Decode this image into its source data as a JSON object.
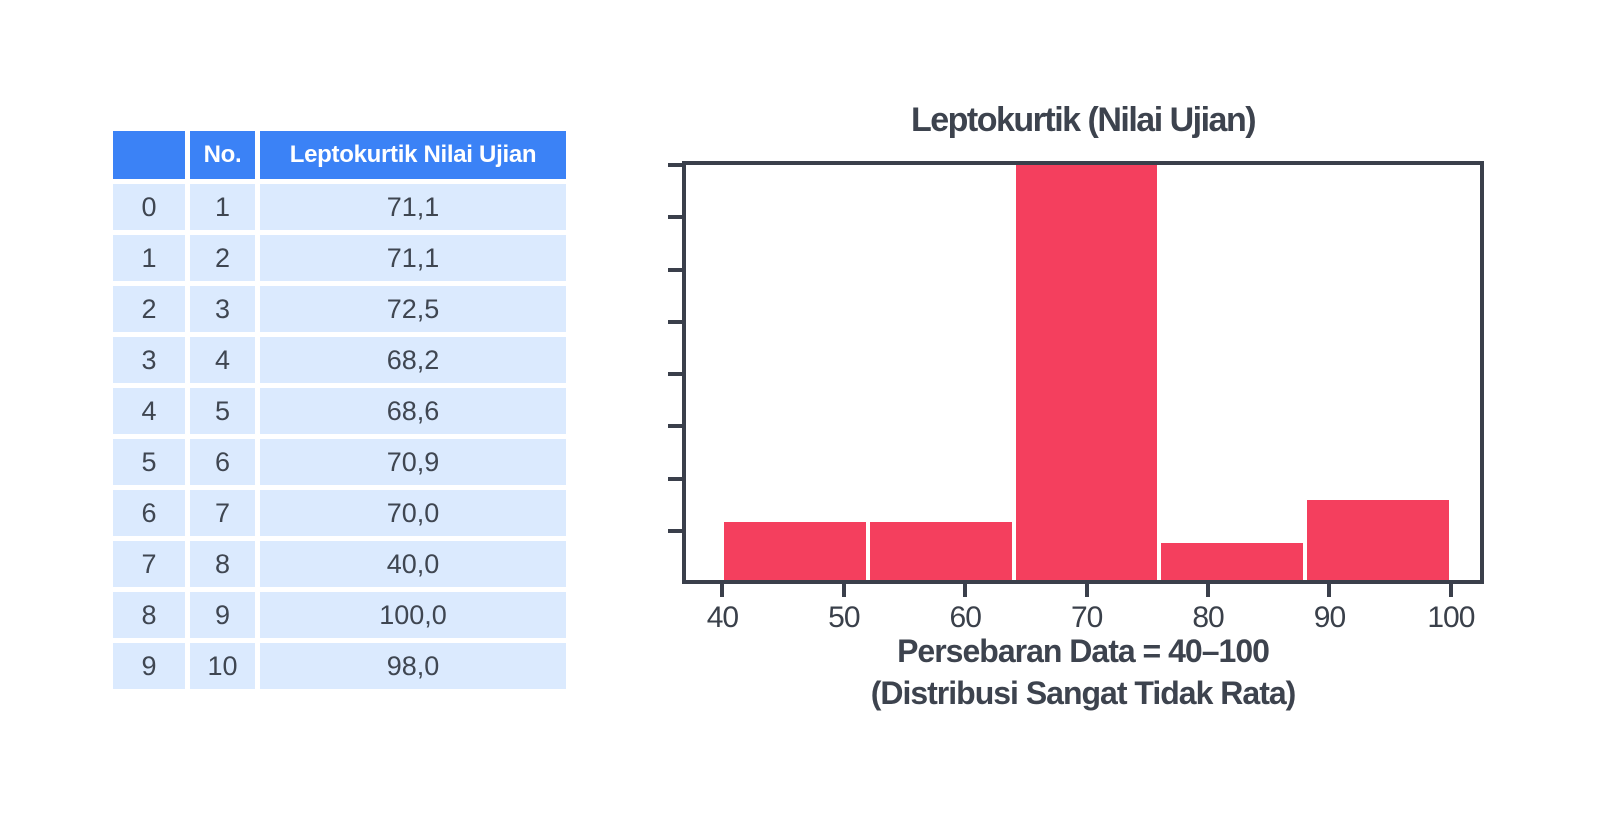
{
  "colors": {
    "header_blue": "#3b82f6",
    "row_light_blue": "#dbeafe",
    "bar_pink": "#f43f5e",
    "axis_dark": "#3a3f4b",
    "text_dark": "#3d434e"
  },
  "table": {
    "headers": [
      "",
      "No.",
      "Leptokurtik Nilai Ujian"
    ],
    "rows": [
      [
        "0",
        "1",
        "71,1"
      ],
      [
        "1",
        "2",
        "71,1"
      ],
      [
        "2",
        "3",
        "72,5"
      ],
      [
        "3",
        "4",
        "68,2"
      ],
      [
        "4",
        "5",
        "68,6"
      ],
      [
        "5",
        "6",
        "70,9"
      ],
      [
        "6",
        "7",
        "70,0"
      ],
      [
        "7",
        "8",
        "40,0"
      ],
      [
        "8",
        "9",
        "100,0"
      ],
      [
        "9",
        "10",
        "98,0"
      ]
    ]
  },
  "chart": {
    "title": "Leptokurtik (Nilai Ujian)",
    "caption_line1": "Persebaran Data = 40–100",
    "caption_line2": "(Distribusi Sangat Tidak Rata)"
  },
  "chart_data": {
    "type": "bar",
    "subtype": "histogram",
    "title": "Leptokurtik (Nilai Ujian)",
    "xlabel": "Persebaran Data = 40–100 (Distribusi Sangat Tidak Rata)",
    "ylabel": "",
    "x_ticks": [
      40,
      50,
      60,
      70,
      80,
      90,
      100
    ],
    "xlim": [
      37.0,
      102.4
    ],
    "grid": false,
    "legend": "none",
    "y_axis": {
      "labels_visible": false,
      "tick_count": 8,
      "first_tick_frac": 0.118,
      "step_frac": 0.126
    },
    "bar_color": "#f43f5e",
    "bins": [
      {
        "x0": 40,
        "x1": 52,
        "height_frac": 0.139
      },
      {
        "x0": 52,
        "x1": 64,
        "height_frac": 0.139
      },
      {
        "x0": 64,
        "x1": 76,
        "height_frac": 1.0,
        "clipped_at_top": true
      },
      {
        "x0": 76,
        "x1": 88,
        "height_frac": 0.089
      },
      {
        "x0": 88,
        "x1": 100,
        "height_frac": 0.192
      }
    ]
  }
}
